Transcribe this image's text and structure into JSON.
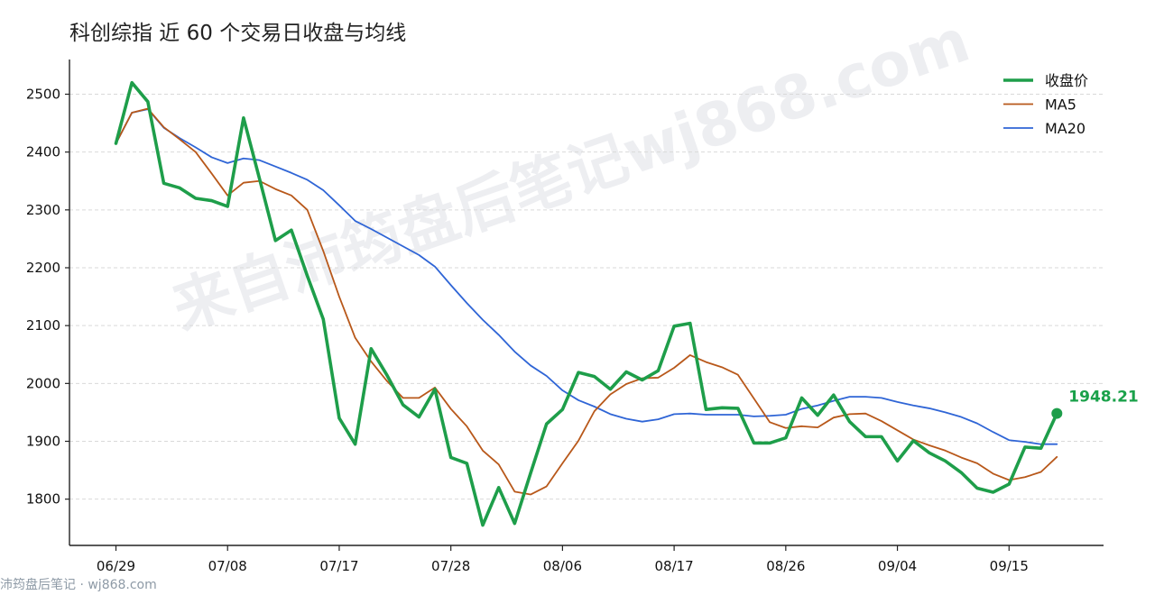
{
  "chart_data": {
    "type": "line",
    "title": "科创综指 近 60 个交易日收盘与均线",
    "xlabel": "",
    "ylabel": "",
    "ylim": [
      1720,
      2560
    ],
    "yticks": [
      1800,
      1900,
      2000,
      2100,
      2200,
      2300,
      2400,
      2500
    ],
    "xticks": [
      {
        "index": 0,
        "label": "06/29"
      },
      {
        "index": 7,
        "label": "07/08"
      },
      {
        "index": 14,
        "label": "07/17"
      },
      {
        "index": 21,
        "label": "07/28"
      },
      {
        "index": 28,
        "label": "08/06"
      },
      {
        "index": 35,
        "label": "08/17"
      },
      {
        "index": 42,
        "label": "08/26"
      },
      {
        "index": 49,
        "label": "09/04"
      },
      {
        "index": 56,
        "label": "09/15"
      }
    ],
    "grid": "horizontal-dashed",
    "legend_position": "top-right",
    "series": [
      {
        "name": "收盘价",
        "color": "#1e9e4a",
        "values": [
          2415,
          2520,
          2487,
          2346,
          2338,
          2320,
          2316,
          2306,
          2459,
          2354,
          2247,
          2265,
          2186,
          2111,
          1940,
          1895,
          2060,
          2014,
          1963,
          1942,
          1990,
          1872,
          1862,
          1755,
          1820,
          1758,
          1845,
          1930,
          1955,
          2019,
          2012,
          1990,
          2020,
          2006,
          2022,
          2099,
          2104,
          1955,
          1958,
          1957,
          1897,
          1897,
          1906,
          1975,
          1945,
          1980,
          1934,
          1908,
          1908,
          1866,
          1901,
          1880,
          1866,
          1846,
          1819,
          1812,
          1826,
          1890,
          1888,
          1948.21
        ]
      },
      {
        "name": "MA5",
        "color": "#b8581a",
        "values": [
          2415,
          2468,
          2475,
          2443,
          2422,
          2400,
          2363,
          2325,
          2347,
          2350,
          2336,
          2325,
          2300,
          2229,
          2150,
          2079,
          2038,
          2004,
          1975,
          1975,
          1993,
          1956,
          1926,
          1884,
          1860,
          1813,
          1808,
          1822,
          1862,
          1901,
          1952,
          1981,
          1999,
          2009,
          2010,
          2027,
          2049,
          2037,
          2028,
          2015,
          1974,
          1933,
          1923,
          1926,
          1924,
          1941,
          1947,
          1948,
          1935,
          1919,
          1903,
          1893,
          1884,
          1872,
          1862,
          1844,
          1833,
          1838,
          1847,
          1873
        ]
      },
      {
        "name": "MA20",
        "color": "#2f65d6",
        "values": [
          2415,
          2468,
          2474,
          2442,
          2424,
          2408,
          2391,
          2381,
          2389,
          2386,
          2375,
          2364,
          2352,
          2334,
          2308,
          2281,
          2267,
          2252,
          2237,
          2222,
          2202,
          2170,
          2139,
          2110,
          2084,
          2055,
          2031,
          2013,
          1988,
          1971,
          1960,
          1947,
          1939,
          1934,
          1938,
          1947,
          1948,
          1946,
          1946,
          1946,
          1943,
          1944,
          1946,
          1956,
          1962,
          1970,
          1977,
          1977,
          1975,
          1968,
          1962,
          1957,
          1950,
          1942,
          1931,
          1916,
          1902,
          1899,
          1895,
          1895
        ]
      }
    ],
    "last_point_label": "1948.21"
  },
  "watermark": {
    "diagonal": "来自沛筠盘后笔记wj868.com",
    "footer": "沛筠盘后笔记 · wj868.com"
  }
}
